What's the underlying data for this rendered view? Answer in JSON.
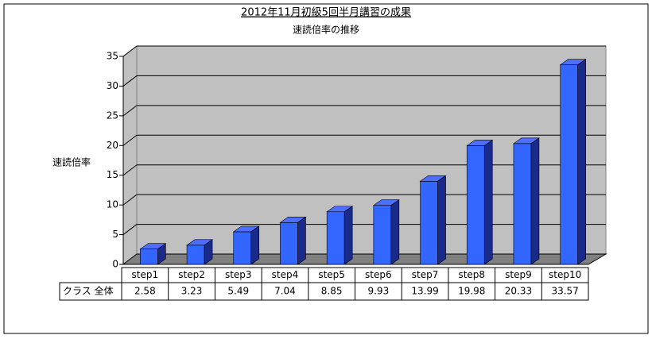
{
  "chart_data": {
    "type": "bar",
    "title": "2012年11月初級5回半月講習の成果",
    "subtitle": "速読倍率の推移",
    "y_label": "速読倍率",
    "categories": [
      "step1",
      "step2",
      "step3",
      "step4",
      "step5",
      "step6",
      "step7",
      "step8",
      "step9",
      "step10"
    ],
    "series": [
      {
        "name": "クラス 全体",
        "color": "#3366ff",
        "values": [
          2.58,
          3.23,
          5.49,
          7.04,
          8.85,
          9.93,
          13.99,
          19.98,
          20.33,
          33.57
        ]
      }
    ],
    "ylim": [
      0,
      35
    ],
    "yticks": [
      0,
      5,
      10,
      15,
      20,
      25,
      30,
      35
    ],
    "grid": true
  }
}
